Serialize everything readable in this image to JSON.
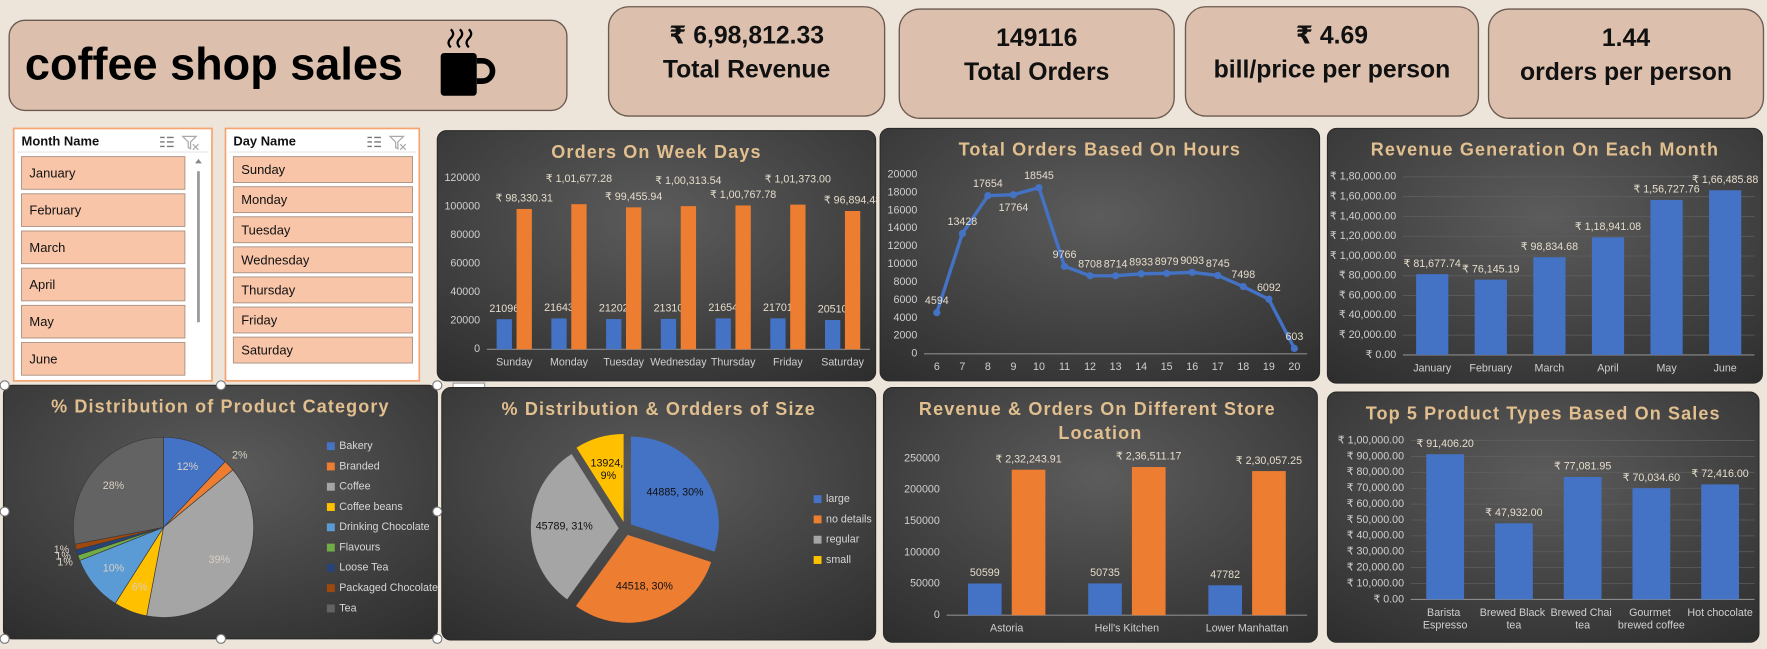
{
  "header": {
    "title": "coffee shop sales"
  },
  "kpis": [
    {
      "value": "₹ 6,98,812.33",
      "label": "Total Revenue"
    },
    {
      "value": "149116",
      "label": "Total Orders"
    },
    {
      "value": "₹ 4.69",
      "label": "bill/price per person"
    },
    {
      "value": "1.44",
      "label": "orders per person"
    }
  ],
  "slicers": [
    {
      "title": "Month Name",
      "items": [
        "January",
        "February",
        "March",
        "April",
        "May",
        "June"
      ]
    },
    {
      "title": "Day Name",
      "items": [
        "Sunday",
        "Monday",
        "Tuesday",
        "Wednesday",
        "Thursday",
        "Friday",
        "Saturday"
      ]
    }
  ],
  "chart_data": [
    {
      "type": "bar",
      "title": "Orders On Week Days",
      "categories": [
        "Sunday",
        "Monday",
        "Tuesday",
        "Wednesday",
        "Thursday",
        "Friday",
        "Saturday"
      ],
      "series": [
        {
          "color": "#4472c4",
          "values": [
            21096,
            21643,
            21202,
            21310,
            21654,
            21701,
            20510
          ]
        },
        {
          "color": "#ed7d31",
          "values": [
            98330.31,
            101677.28,
            99455.94,
            100313.54,
            100767.78,
            101373.0,
            96894.48
          ],
          "value_labels": [
            "₹ 98,330.31",
            "₹ 1,01,677.28",
            "₹ 99,455.94",
            "₹ 1,00,313.54",
            "₹ 1,00,767.78",
            "₹ 1,01,373.00",
            "₹ 96,894.48"
          ]
        }
      ],
      "ylim": [
        0,
        120000
      ],
      "yticks": [
        0,
        20000,
        40000,
        60000,
        80000,
        100000,
        120000
      ],
      "grid": false
    },
    {
      "type": "line",
      "title": "Total Orders Based On Hours",
      "x": [
        6,
        7,
        8,
        9,
        10,
        11,
        12,
        13,
        14,
        15,
        16,
        17,
        18,
        19,
        20
      ],
      "values": [
        4594,
        13428,
        17654,
        17764,
        18545,
        9766,
        8708,
        8714,
        8933,
        8979,
        9093,
        8745,
        7498,
        6092,
        603
      ],
      "color": "#4472c4",
      "xlim": [
        5.5,
        20.5
      ],
      "xticks": [
        6,
        7,
        8,
        9,
        10,
        11,
        12,
        13,
        14,
        15,
        16,
        17,
        18,
        19,
        20
      ],
      "ylim": [
        0,
        20000
      ],
      "yticks": [
        0,
        2000,
        4000,
        6000,
        8000,
        10000,
        12000,
        14000,
        16000,
        18000,
        20000
      ],
      "grid": false
    },
    {
      "type": "bar",
      "title": "Revenue Generation On Each Month",
      "categories": [
        "January",
        "February",
        "March",
        "April",
        "May",
        "June"
      ],
      "values": [
        81677.74,
        76145.19,
        98834.68,
        118941.08,
        156727.76,
        166485.88
      ],
      "value_labels": [
        "₹ 81,677.74",
        "₹ 76,145.19",
        "₹ 98,834.68",
        "₹ 1,18,941.08",
        "₹ 1,56,727.76",
        "₹ 1,66,485.88"
      ],
      "color": "#4472c4",
      "ylim": [
        0,
        180000
      ],
      "yticks": [
        {
          "value": 0,
          "label": "₹ 0.00"
        },
        {
          "value": 20000,
          "label": "₹ 20,000.00"
        },
        {
          "value": 40000,
          "label": "₹ 40,000.00"
        },
        {
          "value": 60000,
          "label": "₹ 60,000.00"
        },
        {
          "value": 80000,
          "label": "₹ 80,000.00"
        },
        {
          "value": 100000,
          "label": "₹ 1,00,000.00"
        },
        {
          "value": 120000,
          "label": "₹ 1,20,000.00"
        },
        {
          "value": 140000,
          "label": "₹ 1,40,000.00"
        },
        {
          "value": 160000,
          "label": "₹ 1,60,000.00"
        },
        {
          "value": 180000,
          "label": "₹ 1,80,000.00"
        }
      ],
      "grid": true
    },
    {
      "type": "pie",
      "title": "% Distribution of Product Category",
      "categories": [
        "Bakery",
        "Branded",
        "Coffee",
        "Coffee beans",
        "Drinking Chocolate",
        "Flavours",
        "Loose Tea",
        "Packaged Chocolate",
        "Tea"
      ],
      "values": [
        12,
        2,
        39,
        6,
        10,
        1,
        1,
        1,
        28
      ],
      "value_labels": [
        "12%",
        "2%",
        "39%",
        "6%",
        "10%",
        "1%",
        "1%",
        "1%",
        "28%"
      ],
      "colors": [
        "#4472c4",
        "#ed7d31",
        "#a5a5a5",
        "#ffc000",
        "#5b9bd5",
        "#70ad47",
        "#264478",
        "#9e480e",
        "#636363"
      ]
    },
    {
      "type": "pie",
      "title": "% Distribution & Ordders of Size",
      "categories": [
        "large",
        "no details",
        "regular",
        "small"
      ],
      "values": [
        30,
        30,
        31,
        9
      ],
      "value_labels": [
        "44885, 30%",
        "44518, 30%",
        "45789, 31%",
        "13924, 9%"
      ],
      "colors": [
        "#4472c4",
        "#ed7d31",
        "#a5a5a5",
        "#ffc000"
      ]
    },
    {
      "type": "bar",
      "title": "Revenue & Orders On Different Store Location",
      "categories": [
        "Astoria",
        "Hell's Kitchen",
        "Lower Manhattan"
      ],
      "series": [
        {
          "color": "#4472c4",
          "values": [
            50599,
            50735,
            47782
          ]
        },
        {
          "color": "#ed7d31",
          "values": [
            232243.91,
            236511.17,
            230057.25
          ],
          "value_labels": [
            "₹ 2,32,243.91",
            "₹ 2,36,511.17",
            "₹ 2,30,057.25"
          ]
        }
      ],
      "ylim": [
        0,
        250000
      ],
      "yticks": [
        0,
        50000,
        100000,
        150000,
        200000,
        250000
      ],
      "grid": false
    },
    {
      "type": "bar",
      "title": "Top 5 Product Types Based On Sales",
      "categories": [
        "Barista Espresso",
        "Brewed Black tea",
        "Brewed Chai tea",
        "Gourmet brewed coffee",
        "Hot chocolate"
      ],
      "values": [
        91406.2,
        47932.0,
        77081.95,
        70034.6,
        72416.0
      ],
      "value_labels": [
        "₹ 91,406.20",
        "₹ 47,932.00",
        "₹ 77,081.95",
        "₹ 70,034.60",
        "₹ 72,416.00"
      ],
      "color": "#4472c4",
      "ylim": [
        0,
        100000
      ],
      "yticks": [
        {
          "value": 0,
          "label": "₹ 0.00"
        },
        {
          "value": 10000,
          "label": "₹ 10,000.00"
        },
        {
          "value": 20000,
          "label": "₹ 20,000.00"
        },
        {
          "value": 30000,
          "label": "₹ 30,000.00"
        },
        {
          "value": 40000,
          "label": "₹ 40,000.00"
        },
        {
          "value": 50000,
          "label": "₹ 50,000.00"
        },
        {
          "value": 60000,
          "label": "₹ 60,000.00"
        },
        {
          "value": 70000,
          "label": "₹ 70,000.00"
        },
        {
          "value": 80000,
          "label": "₹ 80,000.00"
        },
        {
          "value": 90000,
          "label": "₹ 90,000.00"
        },
        {
          "value": 100000,
          "label": "₹ 1,00,000.00"
        }
      ],
      "grid": true
    }
  ]
}
